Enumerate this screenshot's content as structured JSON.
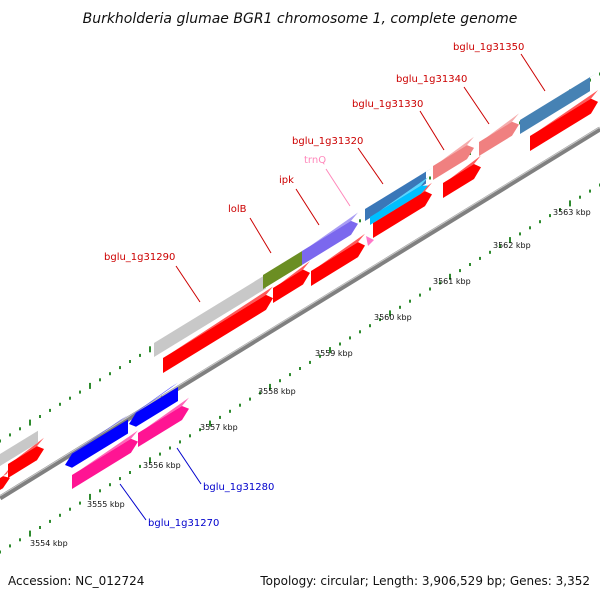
{
  "title": "Burkholderia glumae BGR1 chromosome 1, complete genome",
  "footer": {
    "accession": "Accession: NC_012724",
    "summary": "Topology: circular; Length: 3,906,529 bp; Genes: 3,352"
  },
  "colors": {
    "cds_forward": "#ff0000",
    "backbone": "#808080",
    "tick": "#2e8b2e",
    "label_top": "#cc0000",
    "label_trna": "#ff88bb",
    "label_bottom": "#0000cc"
  },
  "scale_labels": [
    "3554 kbp",
    "3555 kbp",
    "3556 kbp",
    "3557 kbp",
    "3558 kbp",
    "3559 kbp",
    "3560 kbp",
    "3561 kbp",
    "3562 kbp",
    "3563 kbp"
  ],
  "genes_top": [
    {
      "name": "bglu_1g31290",
      "color": "#c8c8c8"
    },
    {
      "name": "lolB",
      "color": "#6b8e23"
    },
    {
      "name": "ipk",
      "color": "#7b68ee"
    },
    {
      "name": "trnQ",
      "color": "#ff77c8"
    },
    {
      "name": "bglu_1g31320",
      "color": "#00bfff"
    },
    {
      "name": "bglu_1g31330",
      "color": "#f08080"
    },
    {
      "name": "bglu_1g31340",
      "color": "#f08080"
    },
    {
      "name": "bglu_1g31350",
      "color": "#4682b4"
    }
  ],
  "genes_bottom": [
    {
      "name": "bglu_1g31270",
      "color": "#0000ff"
    },
    {
      "name": "bglu_1g31280",
      "color": "#ff1493"
    }
  ]
}
